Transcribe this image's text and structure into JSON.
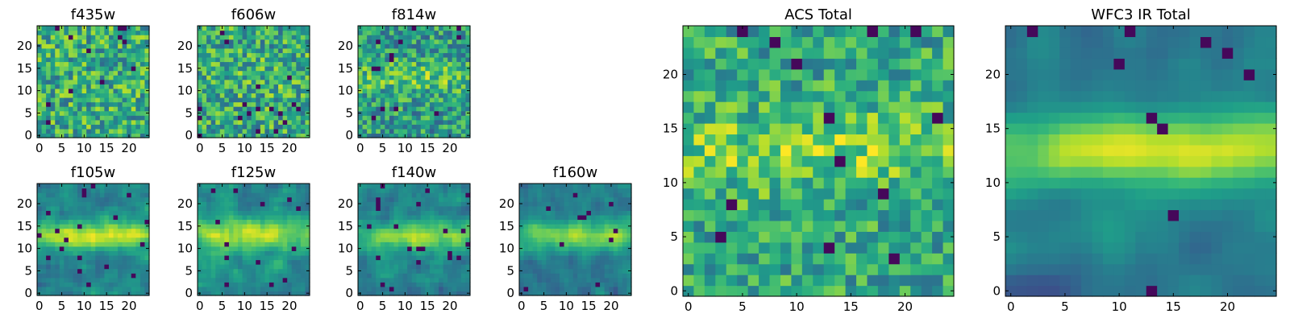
{
  "chart_data": [
    {
      "type": "heatmap",
      "title": "f435w",
      "grid": [
        25,
        25
      ],
      "xticks": [
        "0",
        "5",
        "10",
        "15",
        "20"
      ],
      "yticks": [
        "0",
        "5",
        "10",
        "15",
        "20"
      ],
      "xlim": [
        -0.5,
        24.5
      ],
      "ylim": [
        -0.5,
        24.5
      ],
      "colormap": "viridis",
      "signal": "none"
    },
    {
      "type": "heatmap",
      "title": "f606w",
      "grid": [
        25,
        25
      ],
      "xticks": [
        "0",
        "5",
        "10",
        "15",
        "20"
      ],
      "yticks": [
        "0",
        "5",
        "10",
        "15",
        "20"
      ],
      "xlim": [
        -0.5,
        24.5
      ],
      "ylim": [
        -0.5,
        24.5
      ],
      "colormap": "viridis",
      "signal": "weak"
    },
    {
      "type": "heatmap",
      "title": "f814w",
      "grid": [
        25,
        25
      ],
      "xticks": [
        "0",
        "5",
        "10",
        "15",
        "20"
      ],
      "yticks": [
        "0",
        "5",
        "10",
        "15",
        "20"
      ],
      "xlim": [
        -0.5,
        24.5
      ],
      "ylim": [
        -0.5,
        24.5
      ],
      "colormap": "viridis",
      "signal": "faint band y≈12-15"
    },
    {
      "type": "heatmap",
      "title": "f105w",
      "grid": [
        25,
        25
      ],
      "xticks": [
        "0",
        "5",
        "10",
        "15",
        "20"
      ],
      "yticks": [
        "0",
        "5",
        "10",
        "15",
        "20"
      ],
      "xlim": [
        -0.5,
        24.5
      ],
      "ylim": [
        -0.5,
        24.5
      ],
      "colormap": "viridis",
      "signal": "bright band y≈11-15"
    },
    {
      "type": "heatmap",
      "title": "f125w",
      "grid": [
        25,
        25
      ],
      "xticks": [
        "0",
        "5",
        "10",
        "15",
        "20"
      ],
      "yticks": [
        "0",
        "5",
        "10",
        "15",
        "20"
      ],
      "xlim": [
        -0.5,
        24.5
      ],
      "ylim": [
        -0.5,
        24.5
      ],
      "colormap": "viridis",
      "signal": "band y≈12-15"
    },
    {
      "type": "heatmap",
      "title": "f140w",
      "grid": [
        25,
        25
      ],
      "xticks": [
        "0",
        "5",
        "10",
        "15",
        "20"
      ],
      "yticks": [
        "0",
        "5",
        "10",
        "15",
        "20"
      ],
      "xlim": [
        -0.5,
        24.5
      ],
      "ylim": [
        -0.5,
        24.5
      ],
      "colormap": "viridis",
      "signal": "band y≈12-15"
    },
    {
      "type": "heatmap",
      "title": "f160w",
      "grid": [
        25,
        25
      ],
      "xticks": [
        "0",
        "5",
        "10",
        "15",
        "20"
      ],
      "yticks": [
        "0",
        "5",
        "10",
        "15",
        "20"
      ],
      "xlim": [
        -0.5,
        24.5
      ],
      "ylim": [
        -0.5,
        24.5
      ],
      "colormap": "viridis",
      "signal": "band y≈12-15"
    },
    {
      "type": "heatmap",
      "title": "ACS Total",
      "grid": [
        25,
        25
      ],
      "xticks": [
        "0",
        "5",
        "10",
        "15",
        "20"
      ],
      "yticks": [
        "0",
        "5",
        "10",
        "15",
        "20"
      ],
      "xlim": [
        -0.5,
        24.5
      ],
      "ylim": [
        -0.5,
        24.5
      ],
      "colormap": "viridis",
      "signal": "patchy band y≈11-15"
    },
    {
      "type": "heatmap",
      "title": "WFC3 IR Total",
      "grid": [
        25,
        25
      ],
      "xticks": [
        "0",
        "5",
        "10",
        "15",
        "20"
      ],
      "yticks": [
        "0",
        "5",
        "10",
        "15",
        "20"
      ],
      "xlim": [
        -0.5,
        24.5
      ],
      "ylim": [
        -0.5,
        24.5
      ],
      "colormap": "viridis",
      "signal": "smooth band y≈11-15"
    }
  ]
}
